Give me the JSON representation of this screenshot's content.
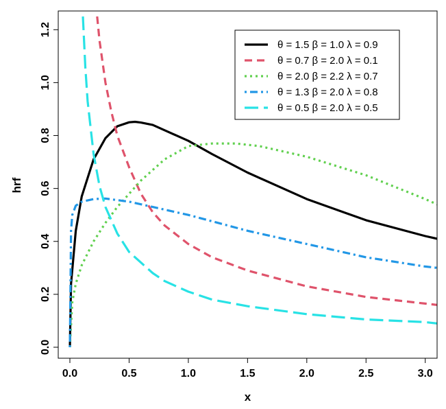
{
  "chart_data": {
    "type": "line",
    "xlabel": "x",
    "ylabel": "hrf",
    "xlim": [
      0,
      3.1
    ],
    "ylim": [
      0,
      1.25
    ],
    "x_ticks": [
      "0.0",
      "0.5",
      "1.0",
      "1.5",
      "2.0",
      "2.5",
      "3.0"
    ],
    "y_ticks": [
      "0.0",
      "0.2",
      "0.4",
      "0.6",
      "0.8",
      "1.0",
      "1.2"
    ],
    "grid": false,
    "legend_position": "top-right",
    "series": [
      {
        "name": "θ = 1.5  β = 1.0  λ = 0.9",
        "color": "#000000",
        "line_style": "solid",
        "x": [
          0.0,
          0.01,
          0.05,
          0.1,
          0.2,
          0.3,
          0.4,
          0.5,
          0.55,
          0.6,
          0.7,
          0.8,
          1.0,
          1.2,
          1.5,
          2.0,
          2.5,
          3.0,
          3.1
        ],
        "y": [
          0.0,
          0.24,
          0.44,
          0.57,
          0.71,
          0.79,
          0.835,
          0.85,
          0.852,
          0.849,
          0.84,
          0.82,
          0.78,
          0.73,
          0.66,
          0.56,
          0.48,
          0.42,
          0.41
        ]
      },
      {
        "name": "θ = 0.7  β = 2.0  λ = 0.1",
        "color": "#DF536B",
        "line_style": "dashed",
        "x": [
          0.23,
          0.25,
          0.3,
          0.35,
          0.4,
          0.5,
          0.6,
          0.7,
          0.8,
          1.0,
          1.2,
          1.5,
          2.0,
          2.5,
          3.0,
          3.1
        ],
        "y": [
          1.25,
          1.16,
          1.0,
          0.89,
          0.8,
          0.68,
          0.58,
          0.51,
          0.46,
          0.39,
          0.34,
          0.29,
          0.23,
          0.19,
          0.165,
          0.16
        ]
      },
      {
        "name": "θ = 2.0  β = 2.2  λ = 0.7",
        "color": "#61D04F",
        "line_style": "dotted",
        "x": [
          0.0,
          0.02,
          0.05,
          0.1,
          0.2,
          0.3,
          0.4,
          0.5,
          0.6,
          0.8,
          1.0,
          1.2,
          1.4,
          1.6,
          2.0,
          2.5,
          3.0,
          3.1
        ],
        "y": [
          0.0,
          0.17,
          0.24,
          0.31,
          0.4,
          0.47,
          0.53,
          0.58,
          0.63,
          0.71,
          0.76,
          0.77,
          0.77,
          0.76,
          0.72,
          0.65,
          0.56,
          0.54
        ]
      },
      {
        "name": "θ = 1.3  β = 2.0  λ = 0.8",
        "color": "#2297E6",
        "line_style": "dashdot",
        "x": [
          0.0,
          0.01,
          0.02,
          0.05,
          0.1,
          0.2,
          0.3,
          0.5,
          0.7,
          1.0,
          1.5,
          2.0,
          2.5,
          3.0,
          3.1
        ],
        "y": [
          0.0,
          0.44,
          0.5,
          0.535,
          0.55,
          0.56,
          0.562,
          0.55,
          0.53,
          0.5,
          0.44,
          0.39,
          0.34,
          0.305,
          0.3
        ]
      },
      {
        "name": "θ = 0.5  β = 2.0  λ = 0.5",
        "color": "#28E2E5",
        "line_style": "longdash",
        "x": [
          0.11,
          0.13,
          0.15,
          0.2,
          0.25,
          0.3,
          0.4,
          0.5,
          0.6,
          0.7,
          0.8,
          1.0,
          1.2,
          1.5,
          2.0,
          2.5,
          3.0,
          3.1
        ],
        "y": [
          1.25,
          1.06,
          0.93,
          0.73,
          0.61,
          0.53,
          0.43,
          0.36,
          0.32,
          0.28,
          0.25,
          0.21,
          0.18,
          0.155,
          0.125,
          0.105,
          0.095,
          0.09
        ]
      }
    ]
  }
}
